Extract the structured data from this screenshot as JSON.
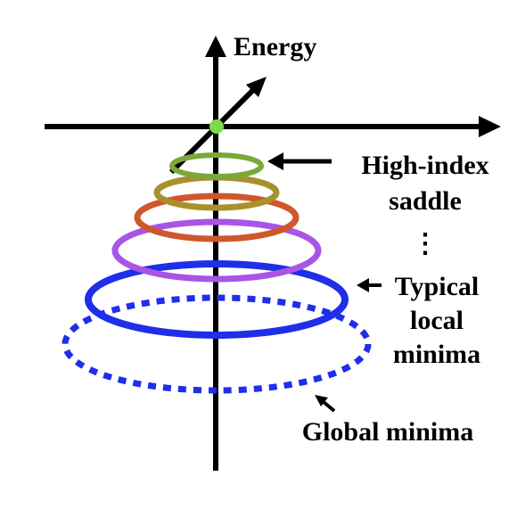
{
  "axis_label": "Energy",
  "labels": {
    "high_index_line1": "High-index",
    "high_index_line2": "saddle",
    "ellipsis": "⋮",
    "typical_line1": "Typical",
    "typical_line2": "local",
    "typical_line3": "minima",
    "global": "Global minima"
  },
  "colors": {
    "axis": "#000000",
    "origin_dot": "#7ddb4b",
    "ring_olive_green": "#7aa83a",
    "ring_olive": "#a8902c",
    "ring_orange": "#d0562c",
    "ring_purple": "#a855e6",
    "ring_blue": "#1f2ee8",
    "ring_blue_dotted": "#1f2ee8"
  }
}
